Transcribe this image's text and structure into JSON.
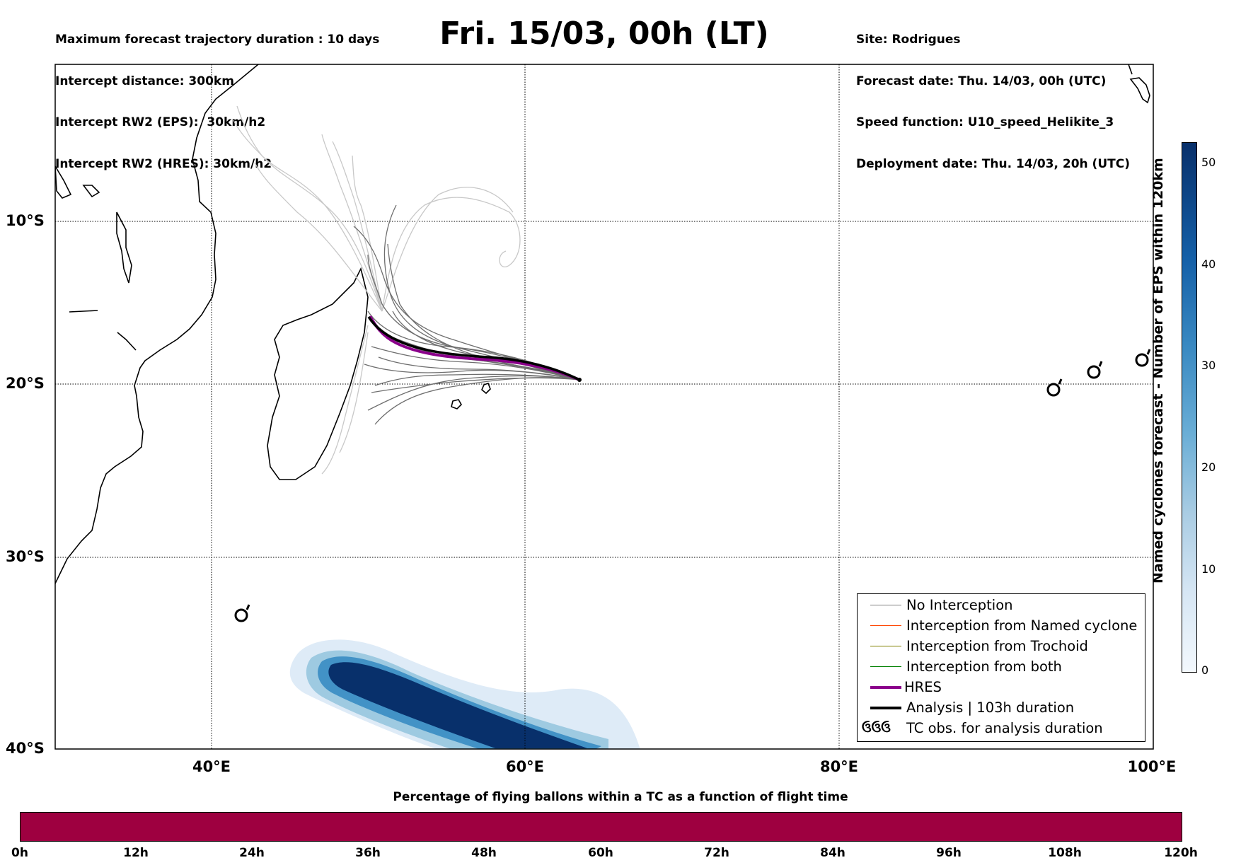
{
  "header_left": [
    "Maximum forecast trajectory duration : 10 days",
    "Intercept distance: 300km",
    "Intercept RW2 (EPS):  30km/h2",
    "Intercept RW2 (HRES): 30km/h2"
  ],
  "header_right": [
    "Site: Rodrigues",
    "Forecast date: Thu. 14/03, 00h (UTC)",
    "Speed function: U10_speed_Helikite_3",
    "Deployment date: Thu. 14/03, 20h (UTC)"
  ],
  "title": "Fri. 15/03, 00h (LT)",
  "map": {
    "lon_labels": [
      "40°E",
      "60°E",
      "80°E",
      "100°E"
    ],
    "lat_labels": [
      "10°S",
      "20°S",
      "30°S",
      "40°S"
    ],
    "lon_range": [
      30,
      100
    ],
    "lat_range": [
      -40,
      0
    ],
    "gridlines": true,
    "tc_obs_symbols": 4
  },
  "legend": {
    "placement": "bottom-right",
    "items": [
      {
        "label": "No Interception",
        "color": "#808080"
      },
      {
        "label": "Interception from Named cyclone",
        "color": "#ff4500"
      },
      {
        "label": "Interception from Trochoid",
        "color": "#808000"
      },
      {
        "label": "Interception from both",
        "color": "#008000"
      },
      {
        "label": "HRES",
        "color": "#8b008b"
      },
      {
        "label": "Analysis | 103h duration",
        "color": "#000000"
      },
      {
        "label": "TC obs. for analysis duration",
        "color": "#000000"
      }
    ],
    "tc_symbol": "ઉઉઉ"
  },
  "colorbar_right": {
    "label": "Named cyclones forecast - Number of EPS within 120km",
    "ticks": [
      "0",
      "10",
      "20",
      "30",
      "40",
      "50"
    ],
    "range": [
      0,
      52
    ]
  },
  "colorbar_bottom": {
    "title": "Percentage of flying ballons within a TC as a function of flight time",
    "ticks": [
      "0h",
      "12h",
      "24h",
      "36h",
      "48h",
      "60h",
      "72h",
      "84h",
      "96h",
      "108h",
      "120h"
    ],
    "color": "#9e0040"
  }
}
